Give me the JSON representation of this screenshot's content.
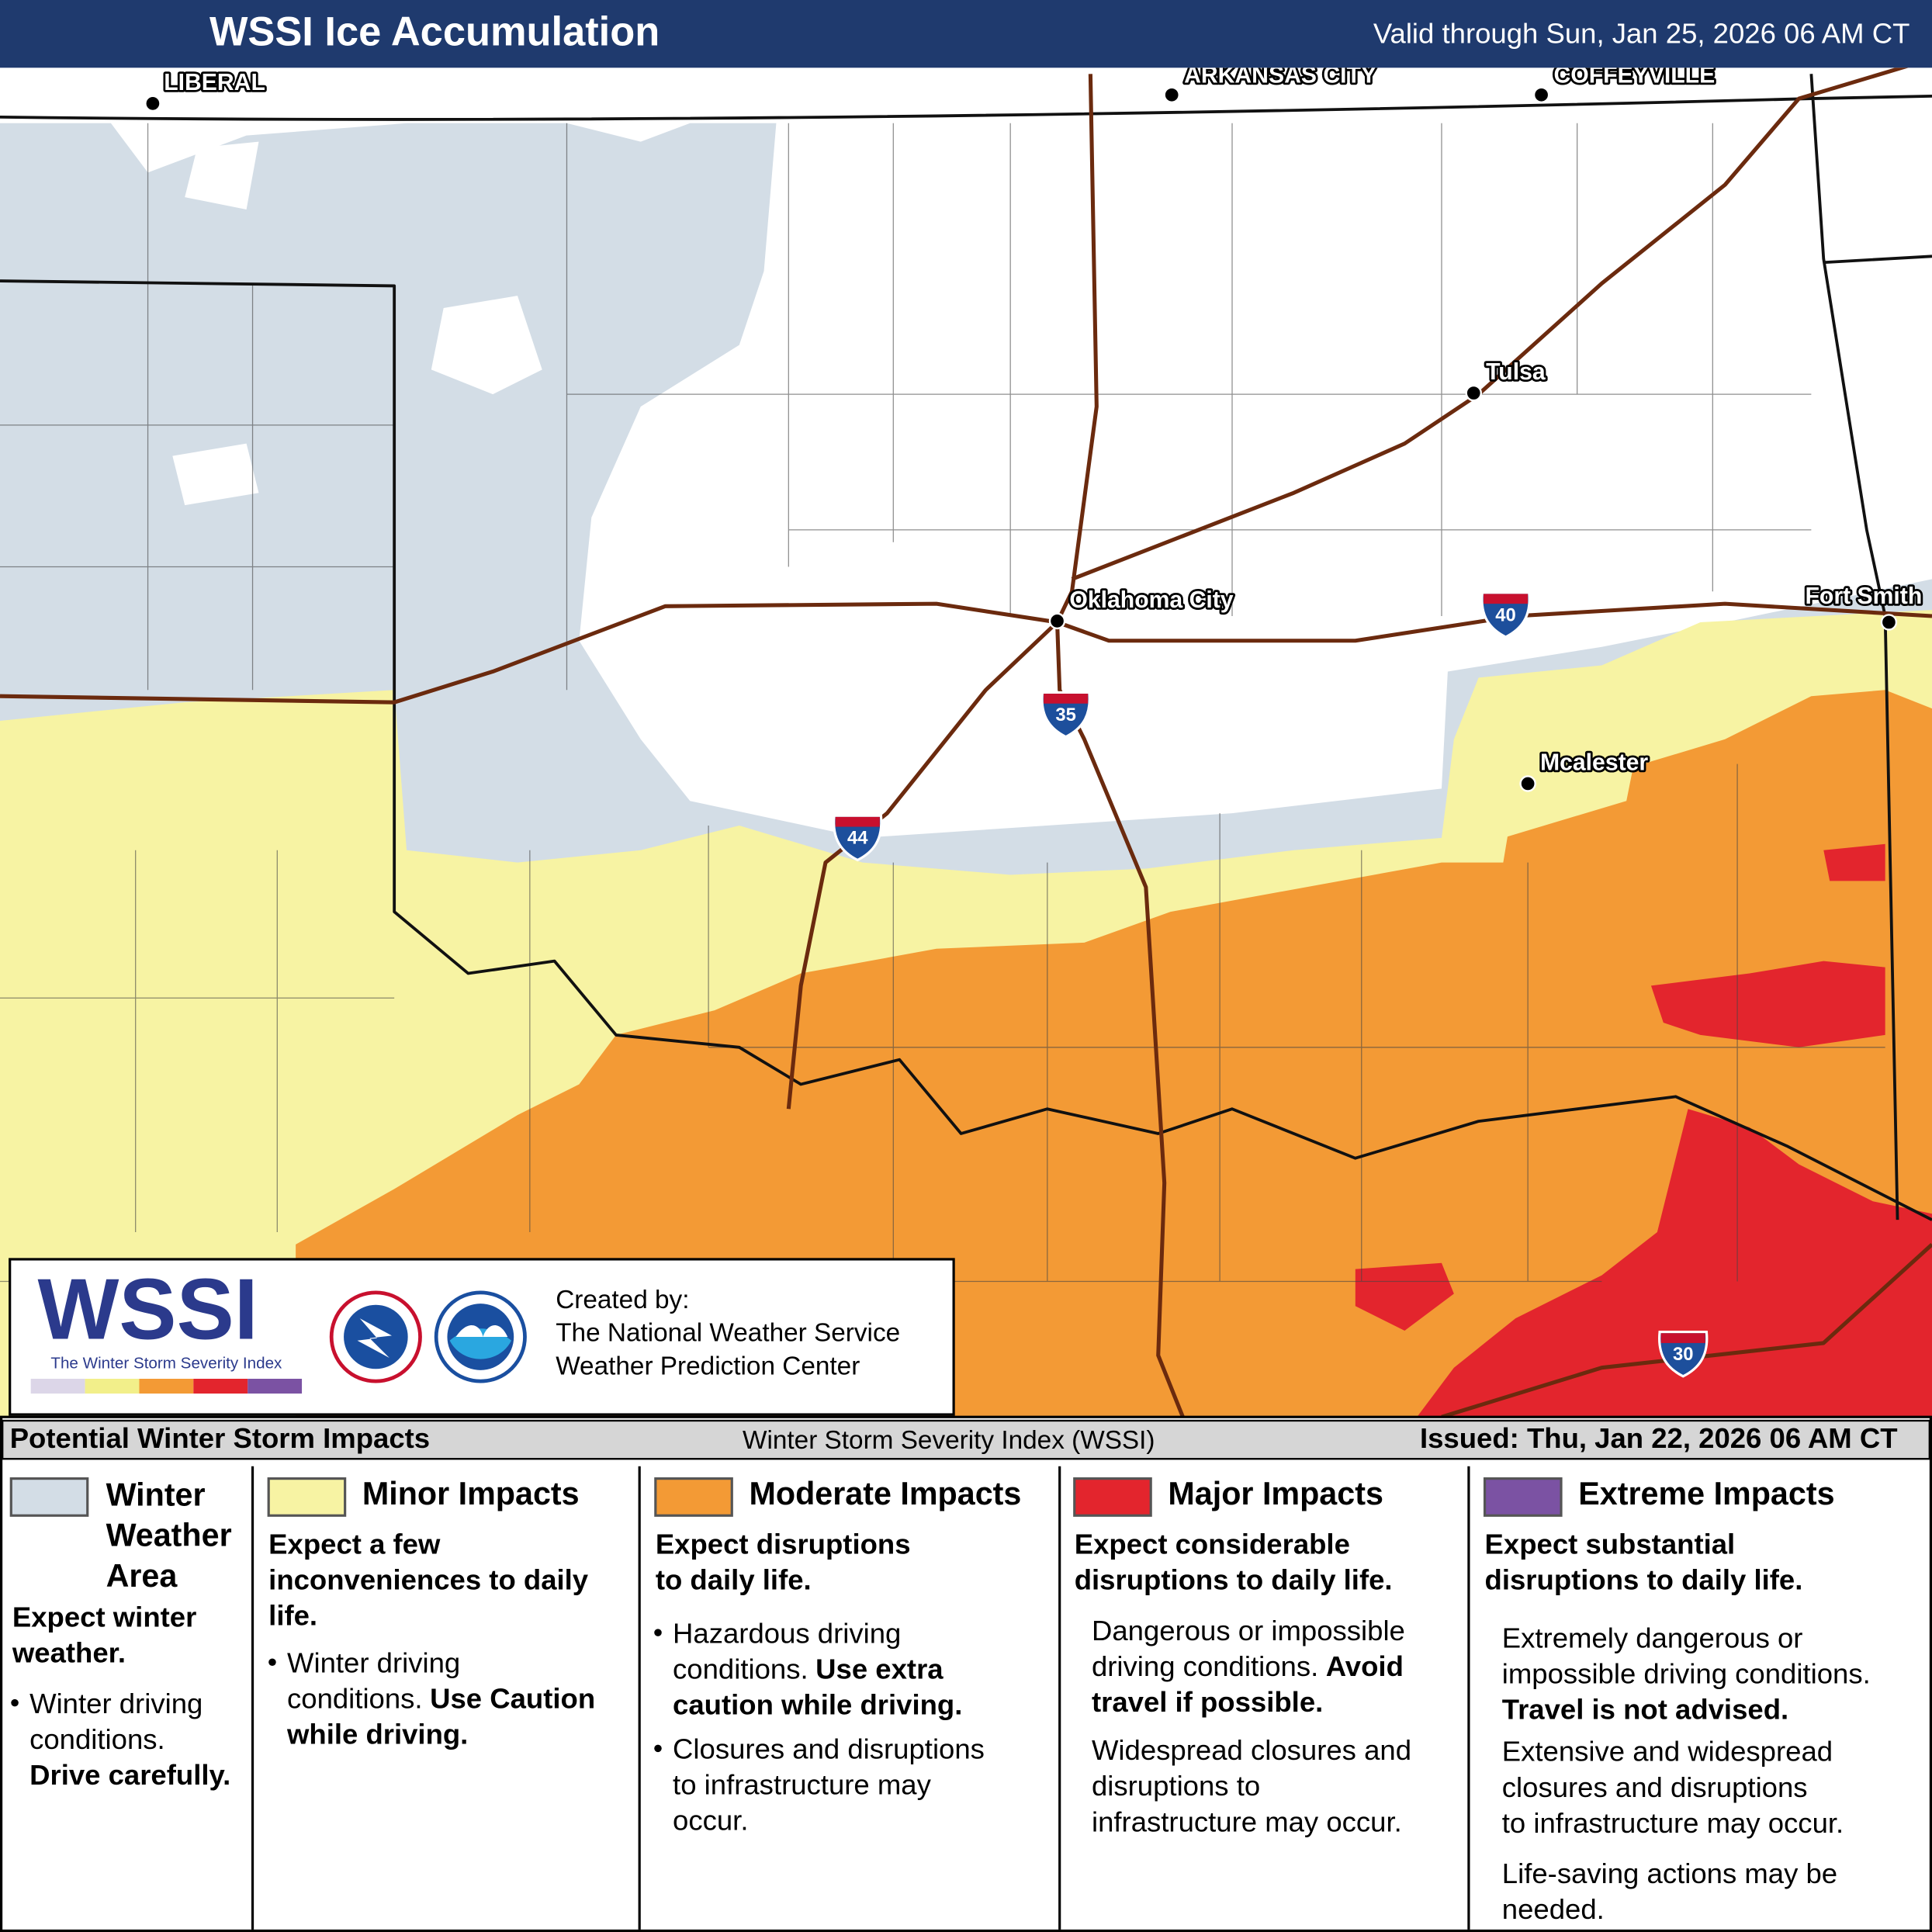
{
  "header": {
    "title": "WSSI Ice Accumulation",
    "valid": "Valid through Sun, Jan 25, 2026 06 AM CT"
  },
  "cities": [
    {
      "label": "LIBERAL"
    },
    {
      "label": "ARKANSAS CITY"
    },
    {
      "label": "COFFEYVILLE"
    },
    {
      "label": "Tulsa"
    },
    {
      "label": "Oklahoma City"
    },
    {
      "label": "Fort Smith"
    },
    {
      "label": "Mcalester"
    }
  ],
  "interstates": [
    "40",
    "35",
    "44",
    "30"
  ],
  "credits": {
    "logo": "WSSI",
    "logo_subtitle": "The Winter Storm Severity Index",
    "created": [
      "Created by:",
      "The National Weather Service",
      "Weather Prediction Center"
    ]
  },
  "legend": {
    "title": "Potential Winter Storm Impacts",
    "center": "Winter Storm Severity Index (WSSI)",
    "issued": "Issued: Thu, Jan 22, 2026 06 AM CT",
    "categories": [
      {
        "name": [
          "Winter",
          "Weather",
          "Area"
        ],
        "color": "#d3dde6",
        "summary": [
          "Expect winter",
          "weather."
        ],
        "paragraphs": [
          {
            "bullet": true,
            "lines": [
              [
                {
                  "text": "Winter driving"
                }
              ],
              [
                {
                  "text": "conditions."
                }
              ],
              [
                {
                  "text": "Drive carefully.",
                  "bold": true
                }
              ]
            ]
          }
        ]
      },
      {
        "name": [
          "Minor Impacts"
        ],
        "color": "#f7f3a3",
        "summary": [
          "Expect a few",
          "inconveniences to daily",
          "life."
        ],
        "paragraphs": [
          {
            "bullet": true,
            "lines": [
              [
                {
                  "text": "Winter driving"
                }
              ],
              [
                {
                  "text": "conditions."
                },
                {
                  "text": "Use Caution",
                  "bold": true
                }
              ],
              [
                {
                  "text": "while driving.",
                  "bold": true
                }
              ]
            ]
          }
        ]
      },
      {
        "name": [
          "Moderate Impacts"
        ],
        "color": "#f39a35",
        "summary": [
          "Expect disruptions",
          "to daily life."
        ],
        "paragraphs": [
          {
            "bullet": true,
            "lines": [
              [
                {
                  "text": "Hazardous driving"
                }
              ],
              [
                {
                  "text": "conditions."
                },
                {
                  "text": "Use extra",
                  "bold": true
                }
              ],
              [
                {
                  "text": "caution while driving.",
                  "bold": true
                }
              ]
            ]
          },
          {
            "bullet": true,
            "lines": [
              [
                {
                  "text": "Closures and disruptions"
                }
              ],
              [
                {
                  "text": "to infrastructure may"
                }
              ],
              [
                {
                  "text": "occur."
                }
              ]
            ]
          }
        ]
      },
      {
        "name": [
          "Major Impacts"
        ],
        "color": "#e3252d",
        "summary": [
          "Expect considerable",
          "disruptions to daily life."
        ],
        "paragraphs": [
          {
            "bullet": false,
            "lines": [
              [
                {
                  "text": "Dangerous or impossible"
                }
              ],
              [
                {
                  "text": "driving conditions."
                },
                {
                  "text": "Avoid",
                  "bold": true
                }
              ],
              [
                {
                  "text": "travel if possible.",
                  "bold": true
                }
              ]
            ]
          },
          {
            "bullet": false,
            "lines": [
              [
                {
                  "text": "Widespread closures and"
                }
              ],
              [
                {
                  "text": "disruptions to"
                }
              ],
              [
                {
                  "text": "infrastructure may occur."
                }
              ]
            ]
          }
        ]
      },
      {
        "name": [
          "Extreme Impacts"
        ],
        "color": "#7b52a3",
        "summary": [
          "Expect substantial",
          "disruptions to daily life."
        ],
        "paragraphs": [
          {
            "bullet": false,
            "lines": [
              [
                {
                  "text": "Extremely dangerous or"
                }
              ],
              [
                {
                  "text": "impossible driving conditions."
                }
              ],
              [
                {
                  "text": "Travel is not advised.",
                  "bold": true
                }
              ]
            ]
          },
          {
            "bullet": false,
            "lines": [
              [
                {
                  "text": "Extensive and widespread"
                }
              ],
              [
                {
                  "text": "closures and disruptions"
                }
              ],
              [
                {
                  "text": "to infrastructure may occur."
                }
              ]
            ]
          },
          {
            "bullet": false,
            "lines": [
              [
                {
                  "text": "Life-saving actions may be"
                }
              ],
              [
                {
                  "text": "needed."
                }
              ]
            ]
          }
        ]
      }
    ]
  }
}
